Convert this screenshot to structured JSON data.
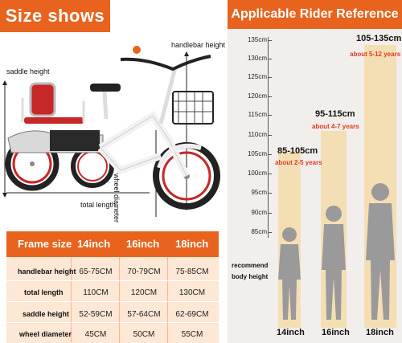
{
  "left": {
    "banner": "Size shows",
    "labels": {
      "handlebar_height": "handlebar height",
      "saddle_height": "saddle height",
      "wheel_diameter": "wheel diameter",
      "total_length": "total length"
    },
    "table": {
      "header": [
        "Frame size",
        "14inch",
        "16inch",
        "18inch"
      ],
      "rows": [
        {
          "label": "handlebar height",
          "values": [
            "65-75CM",
            "70-79CM",
            "75-85CM"
          ]
        },
        {
          "label": "total length",
          "values": [
            "110CM",
            "120CM",
            "130CM"
          ]
        },
        {
          "label": "saddle height",
          "values": [
            "52-59CM",
            "57-64CM",
            "62-69CM"
          ]
        },
        {
          "label": "wheel diameter",
          "values": [
            "45CM",
            "50CM",
            "55CM"
          ]
        }
      ]
    }
  },
  "right": {
    "banner": "Applicable Rider Reference",
    "scale": [
      "135cm",
      "130cm",
      "125cm",
      "120cm",
      "115cm",
      "110cm",
      "105cm",
      "100cm",
      "95cm",
      "90cm",
      "85cm"
    ],
    "recommend": "recommend body height",
    "ranges": [
      {
        "range": "85-105cm",
        "age": "about 2-5 years",
        "size": "14inch"
      },
      {
        "range": "95-115cm",
        "age": "about 4-7 years",
        "size": "16inch"
      },
      {
        "range": "105-135cm",
        "age": "about 5-12 years",
        "size": "18inch"
      }
    ]
  },
  "colors": {
    "accent": "#e8641e",
    "age": "#e03a1e",
    "table_bg": "#fde7d5",
    "band": "#f4dfb4"
  }
}
